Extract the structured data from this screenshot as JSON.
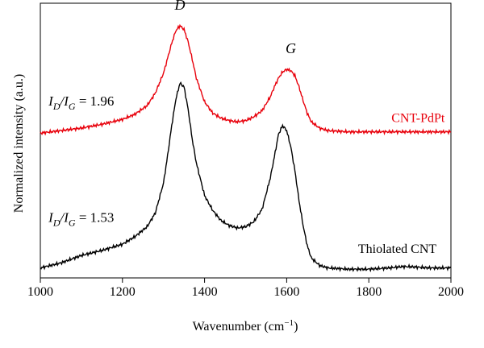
{
  "chart_data": {
    "type": "line",
    "title": "",
    "xlabel": "Wavenumber (cm",
    "xlabel_sup": "−1",
    "xlabel_close": ")",
    "ylabel": "Normalized intensity (a.u.)",
    "xlim": [
      1000,
      2000
    ],
    "ylim": [
      0,
      2.2
    ],
    "x_ticks": [
      1000,
      1200,
      1400,
      1600,
      1800,
      2000
    ],
    "x_tick_labels": [
      "1000",
      "1200",
      "1400",
      "1600",
      "1800",
      "2000"
    ],
    "y_ticks_shown": false,
    "grid": false,
    "series": [
      {
        "name": "CNT-PdPt",
        "color": "#e8000b",
        "x": [
          1000,
          1050,
          1100,
          1150,
          1200,
          1230,
          1260,
          1280,
          1300,
          1310,
          1320,
          1330,
          1340,
          1350,
          1360,
          1370,
          1380,
          1400,
          1420,
          1440,
          1460,
          1480,
          1500,
          1520,
          1540,
          1560,
          1570,
          1580,
          1590,
          1600,
          1610,
          1620,
          1630,
          1640,
          1650,
          1660,
          1680,
          1700,
          1750,
          1800,
          1850,
          1900,
          1950,
          2000
        ],
        "y": [
          1.16,
          1.18,
          1.2,
          1.23,
          1.27,
          1.31,
          1.38,
          1.48,
          1.64,
          1.76,
          1.88,
          1.98,
          2.02,
          1.99,
          1.89,
          1.75,
          1.6,
          1.41,
          1.32,
          1.28,
          1.26,
          1.25,
          1.26,
          1.29,
          1.34,
          1.45,
          1.53,
          1.6,
          1.65,
          1.67,
          1.66,
          1.62,
          1.53,
          1.42,
          1.32,
          1.25,
          1.2,
          1.18,
          1.17,
          1.17,
          1.17,
          1.17,
          1.17,
          1.17
        ]
      },
      {
        "name": "Thiolated CNT",
        "color": "#000000",
        "x": [
          1000,
          1050,
          1100,
          1150,
          1200,
          1230,
          1260,
          1280,
          1300,
          1310,
          1320,
          1330,
          1340,
          1350,
          1360,
          1370,
          1380,
          1400,
          1420,
          1440,
          1460,
          1480,
          1500,
          1520,
          1540,
          1560,
          1570,
          1580,
          1590,
          1600,
          1610,
          1620,
          1630,
          1640,
          1650,
          1660,
          1680,
          1700,
          1750,
          1800,
          1850,
          1880,
          1900,
          1950,
          2000
        ],
        "y": [
          0.08,
          0.12,
          0.18,
          0.22,
          0.27,
          0.33,
          0.41,
          0.52,
          0.76,
          0.98,
          1.22,
          1.43,
          1.56,
          1.53,
          1.35,
          1.11,
          0.92,
          0.66,
          0.54,
          0.46,
          0.42,
          0.4,
          0.41,
          0.45,
          0.55,
          0.8,
          0.97,
          1.15,
          1.22,
          1.18,
          1.05,
          0.86,
          0.62,
          0.42,
          0.26,
          0.16,
          0.1,
          0.08,
          0.07,
          0.07,
          0.08,
          0.09,
          0.09,
          0.08,
          0.08
        ]
      }
    ],
    "annotations": [
      {
        "id": "peak_D",
        "text": "D",
        "x": 1340,
        "y": 2.15
      },
      {
        "id": "peak_G",
        "text": "G",
        "x": 1610,
        "y": 1.8
      },
      {
        "id": "ratio_red",
        "text_prefix": "I",
        "sub1": "D",
        "slash": "/I",
        "sub2": "G",
        "text_suffix": " = 1.96",
        "x": 1020,
        "y": 1.38
      },
      {
        "id": "ratio_black",
        "text_prefix": "I",
        "sub1": "D",
        "slash": "/I",
        "sub2": "G",
        "text_suffix": " = 1.53",
        "x": 1020,
        "y": 0.45
      },
      {
        "id": "label_red",
        "text": "CNT-PdPt",
        "x": 1985,
        "y": 1.25
      },
      {
        "id": "label_black",
        "text": "Thiolated CNT",
        "x": 1965,
        "y": 0.2
      }
    ]
  }
}
